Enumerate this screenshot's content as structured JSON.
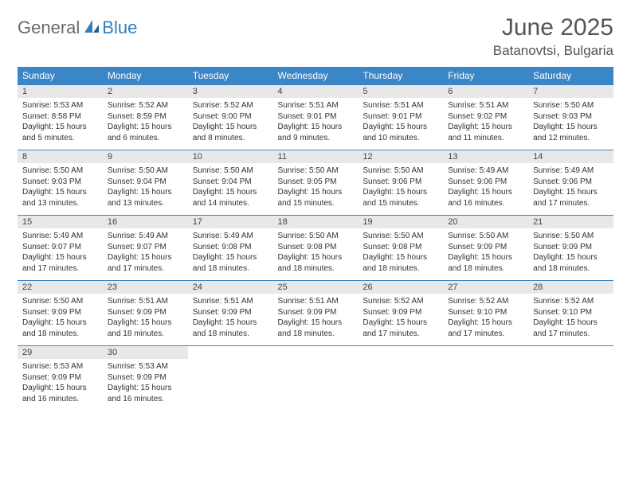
{
  "logo": {
    "text1": "General",
    "text2": "Blue"
  },
  "title": "June 2025",
  "location": "Batanovtsi, Bulgaria",
  "colors": {
    "header_bg": "#3b86c6",
    "header_text": "#ffffff",
    "daynum_bg": "#e8e8e8",
    "border": "#3b86c6",
    "logo_gray": "#6b6b6b",
    "logo_blue": "#2f7fc1",
    "text": "#333333",
    "title_color": "#555555",
    "background": "#ffffff"
  },
  "weekdays": [
    "Sunday",
    "Monday",
    "Tuesday",
    "Wednesday",
    "Thursday",
    "Friday",
    "Saturday"
  ],
  "weeks": [
    [
      {
        "n": "1",
        "sunrise": "5:53 AM",
        "sunset": "8:58 PM",
        "daylight": "15 hours and 5 minutes."
      },
      {
        "n": "2",
        "sunrise": "5:52 AM",
        "sunset": "8:59 PM",
        "daylight": "15 hours and 6 minutes."
      },
      {
        "n": "3",
        "sunrise": "5:52 AM",
        "sunset": "9:00 PM",
        "daylight": "15 hours and 8 minutes."
      },
      {
        "n": "4",
        "sunrise": "5:51 AM",
        "sunset": "9:01 PM",
        "daylight": "15 hours and 9 minutes."
      },
      {
        "n": "5",
        "sunrise": "5:51 AM",
        "sunset": "9:01 PM",
        "daylight": "15 hours and 10 minutes."
      },
      {
        "n": "6",
        "sunrise": "5:51 AM",
        "sunset": "9:02 PM",
        "daylight": "15 hours and 11 minutes."
      },
      {
        "n": "7",
        "sunrise": "5:50 AM",
        "sunset": "9:03 PM",
        "daylight": "15 hours and 12 minutes."
      }
    ],
    [
      {
        "n": "8",
        "sunrise": "5:50 AM",
        "sunset": "9:03 PM",
        "daylight": "15 hours and 13 minutes."
      },
      {
        "n": "9",
        "sunrise": "5:50 AM",
        "sunset": "9:04 PM",
        "daylight": "15 hours and 13 minutes."
      },
      {
        "n": "10",
        "sunrise": "5:50 AM",
        "sunset": "9:04 PM",
        "daylight": "15 hours and 14 minutes."
      },
      {
        "n": "11",
        "sunrise": "5:50 AM",
        "sunset": "9:05 PM",
        "daylight": "15 hours and 15 minutes."
      },
      {
        "n": "12",
        "sunrise": "5:50 AM",
        "sunset": "9:06 PM",
        "daylight": "15 hours and 15 minutes."
      },
      {
        "n": "13",
        "sunrise": "5:49 AM",
        "sunset": "9:06 PM",
        "daylight": "15 hours and 16 minutes."
      },
      {
        "n": "14",
        "sunrise": "5:49 AM",
        "sunset": "9:06 PM",
        "daylight": "15 hours and 17 minutes."
      }
    ],
    [
      {
        "n": "15",
        "sunrise": "5:49 AM",
        "sunset": "9:07 PM",
        "daylight": "15 hours and 17 minutes."
      },
      {
        "n": "16",
        "sunrise": "5:49 AM",
        "sunset": "9:07 PM",
        "daylight": "15 hours and 17 minutes."
      },
      {
        "n": "17",
        "sunrise": "5:49 AM",
        "sunset": "9:08 PM",
        "daylight": "15 hours and 18 minutes."
      },
      {
        "n": "18",
        "sunrise": "5:50 AM",
        "sunset": "9:08 PM",
        "daylight": "15 hours and 18 minutes."
      },
      {
        "n": "19",
        "sunrise": "5:50 AM",
        "sunset": "9:08 PM",
        "daylight": "15 hours and 18 minutes."
      },
      {
        "n": "20",
        "sunrise": "5:50 AM",
        "sunset": "9:09 PM",
        "daylight": "15 hours and 18 minutes."
      },
      {
        "n": "21",
        "sunrise": "5:50 AM",
        "sunset": "9:09 PM",
        "daylight": "15 hours and 18 minutes."
      }
    ],
    [
      {
        "n": "22",
        "sunrise": "5:50 AM",
        "sunset": "9:09 PM",
        "daylight": "15 hours and 18 minutes."
      },
      {
        "n": "23",
        "sunrise": "5:51 AM",
        "sunset": "9:09 PM",
        "daylight": "15 hours and 18 minutes."
      },
      {
        "n": "24",
        "sunrise": "5:51 AM",
        "sunset": "9:09 PM",
        "daylight": "15 hours and 18 minutes."
      },
      {
        "n": "25",
        "sunrise": "5:51 AM",
        "sunset": "9:09 PM",
        "daylight": "15 hours and 18 minutes."
      },
      {
        "n": "26",
        "sunrise": "5:52 AM",
        "sunset": "9:09 PM",
        "daylight": "15 hours and 17 minutes."
      },
      {
        "n": "27",
        "sunrise": "5:52 AM",
        "sunset": "9:10 PM",
        "daylight": "15 hours and 17 minutes."
      },
      {
        "n": "28",
        "sunrise": "5:52 AM",
        "sunset": "9:10 PM",
        "daylight": "15 hours and 17 minutes."
      }
    ],
    [
      {
        "n": "29",
        "sunrise": "5:53 AM",
        "sunset": "9:09 PM",
        "daylight": "15 hours and 16 minutes."
      },
      {
        "n": "30",
        "sunrise": "5:53 AM",
        "sunset": "9:09 PM",
        "daylight": "15 hours and 16 minutes."
      },
      null,
      null,
      null,
      null,
      null
    ]
  ],
  "labels": {
    "sunrise": "Sunrise: ",
    "sunset": "Sunset: ",
    "daylight": "Daylight: "
  }
}
